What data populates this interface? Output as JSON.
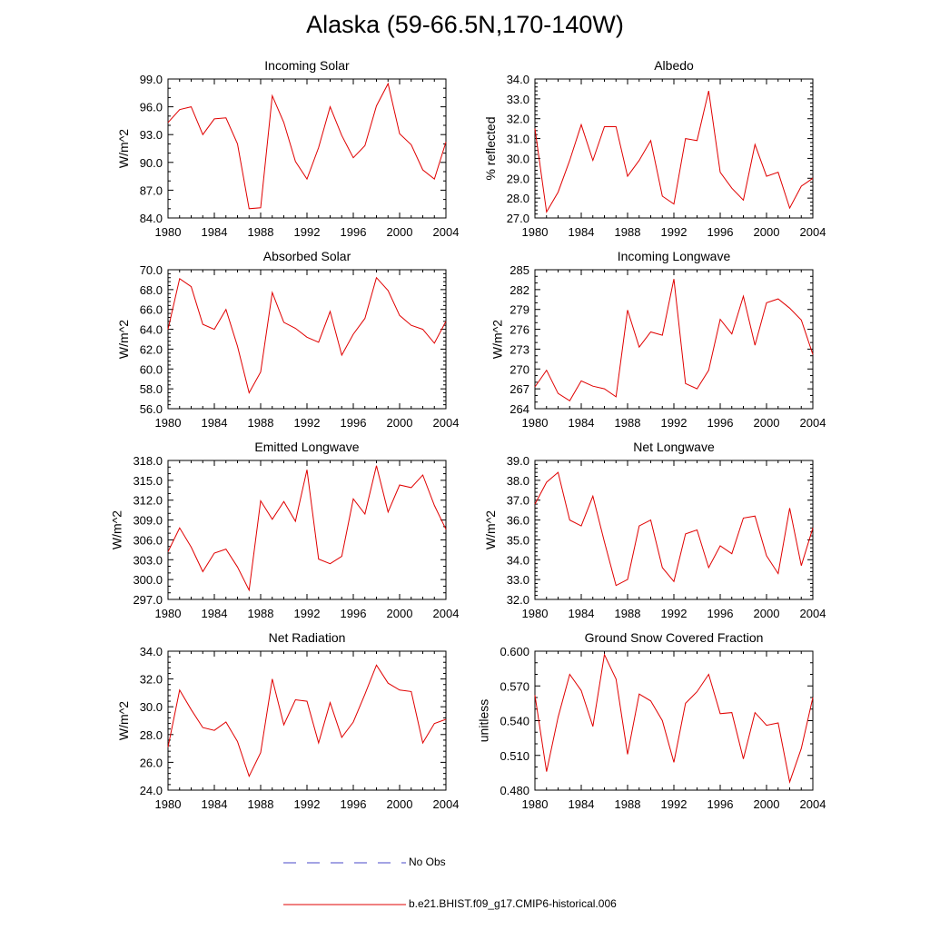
{
  "page": {
    "title": "Alaska (59-66.5N,170-140W)"
  },
  "legend": {
    "items": [
      {
        "label": "No Obs",
        "color": "#4a4ac8",
        "style": "dashed"
      },
      {
        "label": "b.e21.BHIST.f09_g17.CMIP6-historical.006",
        "color": "#e00000",
        "style": "solid"
      }
    ]
  },
  "chart_data": [
    {
      "type": "line",
      "title": "Incoming Solar",
      "xlabel": "",
      "ylabel": "W/m^2",
      "xlim": [
        1980,
        2004
      ],
      "ylim": [
        84.0,
        99.0
      ],
      "xticks": [
        "1980",
        "1984",
        "1988",
        "1992",
        "1996",
        "2000",
        "2004"
      ],
      "yticks": [
        "84.0",
        "87.0",
        "90.0",
        "93.0",
        "96.0",
        "99.0"
      ],
      "grid": false,
      "series": [
        {
          "color": "#e00000",
          "x": [
            1980,
            1981,
            1982,
            1983,
            1984,
            1985,
            1986,
            1987,
            1988,
            1989,
            1990,
            1991,
            1992,
            1993,
            1994,
            1995,
            1996,
            1997,
            1998,
            1999,
            2000,
            2001,
            2002,
            2003,
            2004
          ],
          "values": [
            94.3,
            95.7,
            96.0,
            93.0,
            94.7,
            94.8,
            92.0,
            85.0,
            85.1,
            97.2,
            94.3,
            90.1,
            88.2,
            91.6,
            96.0,
            92.9,
            90.5,
            91.8,
            96.1,
            98.5,
            93.1,
            91.9,
            89.2,
            88.2,
            92.2
          ]
        }
      ]
    },
    {
      "type": "line",
      "title": "Albedo",
      "xlabel": "",
      "ylabel": "% reflected",
      "xlim": [
        1980,
        2004
      ],
      "ylim": [
        27.0,
        34.0
      ],
      "xticks": [
        "1980",
        "1984",
        "1988",
        "1992",
        "1996",
        "2000",
        "2004"
      ],
      "yticks": [
        "27.0",
        "28.0",
        "29.0",
        "30.0",
        "31.0",
        "32.0",
        "33.0",
        "34.0"
      ],
      "grid": false,
      "series": [
        {
          "color": "#e00000",
          "x": [
            1980,
            1981,
            1982,
            1983,
            1984,
            1985,
            1986,
            1987,
            1988,
            1989,
            1990,
            1991,
            1992,
            1993,
            1994,
            1995,
            1996,
            1997,
            1998,
            1999,
            2000,
            2001,
            2002,
            2003,
            2004
          ],
          "values": [
            31.5,
            27.3,
            28.3,
            29.9,
            31.7,
            29.9,
            31.6,
            31.6,
            29.1,
            29.9,
            30.9,
            28.1,
            27.7,
            31.0,
            30.9,
            33.4,
            29.3,
            28.5,
            27.9,
            30.7,
            29.1,
            29.3,
            27.5,
            28.6,
            29.0
          ]
        }
      ]
    },
    {
      "type": "line",
      "title": "Absorbed Solar",
      "xlabel": "",
      "ylabel": "W/m^2",
      "xlim": [
        1980,
        2004
      ],
      "ylim": [
        56.0,
        70.0
      ],
      "xticks": [
        "1980",
        "1984",
        "1988",
        "1992",
        "1996",
        "2000",
        "2004"
      ],
      "yticks": [
        "56.0",
        "58.0",
        "60.0",
        "62.0",
        "64.0",
        "66.0",
        "68.0",
        "70.0"
      ],
      "grid": false,
      "series": [
        {
          "color": "#e00000",
          "x": [
            1980,
            1981,
            1982,
            1983,
            1984,
            1985,
            1986,
            1987,
            1988,
            1989,
            1990,
            1991,
            1992,
            1993,
            1994,
            1995,
            1996,
            1997,
            1998,
            1999,
            2000,
            2001,
            2002,
            2003,
            2004
          ],
          "values": [
            64.0,
            69.1,
            68.3,
            64.5,
            64.0,
            66.0,
            62.3,
            57.6,
            59.7,
            67.7,
            64.7,
            64.1,
            63.2,
            62.7,
            65.8,
            61.4,
            63.5,
            65.1,
            69.2,
            67.9,
            65.4,
            64.4,
            64.0,
            62.6,
            64.8
          ]
        }
      ]
    },
    {
      "type": "line",
      "title": "Incoming Longwave",
      "xlabel": "",
      "ylabel": "W/m^2",
      "xlim": [
        1980,
        2004
      ],
      "ylim": [
        264,
        285
      ],
      "xticks": [
        "1980",
        "1984",
        "1988",
        "1992",
        "1996",
        "2000",
        "2004"
      ],
      "yticks": [
        "264",
        "267",
        "270",
        "273",
        "276",
        "279",
        "282",
        "285"
      ],
      "grid": false,
      "series": [
        {
          "color": "#e00000",
          "x": [
            1980,
            1981,
            1982,
            1983,
            1984,
            1985,
            1986,
            1987,
            1988,
            1989,
            1990,
            1991,
            1992,
            1993,
            1994,
            1995,
            1996,
            1997,
            1998,
            1999,
            2000,
            2001,
            2002,
            2003,
            2004
          ],
          "values": [
            267.3,
            269.8,
            266.3,
            265.2,
            268.2,
            267.4,
            267.0,
            265.8,
            278.9,
            273.3,
            275.6,
            275.1,
            283.6,
            267.8,
            267.0,
            269.8,
            277.5,
            275.3,
            281.0,
            273.6,
            280.0,
            280.6,
            279.2,
            277.4,
            272.2
          ]
        }
      ]
    },
    {
      "type": "line",
      "title": "Emitted Longwave",
      "xlabel": "",
      "ylabel": "W/m^2",
      "xlim": [
        1980,
        2004
      ],
      "ylim": [
        297.0,
        318.0
      ],
      "xticks": [
        "1980",
        "1984",
        "1988",
        "1992",
        "1996",
        "2000",
        "2004"
      ],
      "yticks": [
        "297.0",
        "300.0",
        "303.0",
        "306.0",
        "309.0",
        "312.0",
        "315.0",
        "318.0"
      ],
      "grid": false,
      "series": [
        {
          "color": "#e00000",
          "x": [
            1980,
            1981,
            1982,
            1983,
            1984,
            1985,
            1986,
            1987,
            1988,
            1989,
            1990,
            1991,
            1992,
            1993,
            1994,
            1995,
            1996,
            1997,
            1998,
            1999,
            2000,
            2001,
            2002,
            2003,
            2004
          ],
          "values": [
            304.2,
            307.8,
            304.9,
            301.2,
            304.0,
            304.6,
            301.9,
            298.4,
            311.9,
            309.1,
            311.8,
            308.8,
            316.6,
            303.1,
            302.4,
            303.5,
            312.2,
            309.9,
            317.2,
            310.2,
            314.3,
            313.9,
            315.8,
            311.2,
            307.6
          ]
        }
      ]
    },
    {
      "type": "line",
      "title": "Net Longwave",
      "xlabel": "",
      "ylabel": "W/m^2",
      "xlim": [
        1980,
        2004
      ],
      "ylim": [
        32.0,
        39.0
      ],
      "xticks": [
        "1980",
        "1984",
        "1988",
        "1992",
        "1996",
        "2000",
        "2004"
      ],
      "yticks": [
        "32.0",
        "33.0",
        "34.0",
        "35.0",
        "36.0",
        "37.0",
        "38.0",
        "39.0"
      ],
      "grid": false,
      "series": [
        {
          "color": "#e00000",
          "x": [
            1980,
            1981,
            1982,
            1983,
            1984,
            1985,
            1986,
            1987,
            1988,
            1989,
            1990,
            1991,
            1992,
            1993,
            1994,
            1995,
            1996,
            1997,
            1998,
            1999,
            2000,
            2001,
            2002,
            2003,
            2004
          ],
          "values": [
            36.8,
            37.9,
            38.4,
            36.0,
            35.7,
            37.2,
            34.9,
            32.7,
            33.0,
            35.7,
            36.0,
            33.6,
            32.9,
            35.3,
            35.5,
            33.6,
            34.7,
            34.3,
            36.1,
            36.2,
            34.2,
            33.3,
            36.6,
            33.7,
            35.6
          ]
        }
      ]
    },
    {
      "type": "line",
      "title": "Net Radiation",
      "xlabel": "",
      "ylabel": "W/m^2",
      "xlim": [
        1980,
        2004
      ],
      "ylim": [
        24.0,
        34.0
      ],
      "xticks": [
        "1980",
        "1984",
        "1988",
        "1992",
        "1996",
        "2000",
        "2004"
      ],
      "yticks": [
        "24.0",
        "26.0",
        "28.0",
        "30.0",
        "32.0",
        "34.0"
      ],
      "grid": false,
      "series": [
        {
          "color": "#e00000",
          "x": [
            1980,
            1981,
            1982,
            1983,
            1984,
            1985,
            1986,
            1987,
            1988,
            1989,
            1990,
            1991,
            1992,
            1993,
            1994,
            1995,
            1996,
            1997,
            1998,
            1999,
            2000,
            2001,
            2002,
            2003,
            2004
          ],
          "values": [
            27.1,
            31.2,
            29.8,
            28.5,
            28.3,
            28.9,
            27.5,
            25.0,
            26.7,
            32.0,
            28.7,
            30.5,
            30.4,
            27.4,
            30.3,
            27.8,
            28.9,
            30.9,
            33.0,
            31.7,
            31.2,
            31.1,
            27.4,
            28.8,
            29.1
          ]
        }
      ]
    },
    {
      "type": "line",
      "title": "Ground Snow Covered Fraction",
      "xlabel": "",
      "ylabel": "unitless",
      "xlim": [
        1980,
        2004
      ],
      "ylim": [
        0.48,
        0.6
      ],
      "xticks": [
        "1980",
        "1984",
        "1988",
        "1992",
        "1996",
        "2000",
        "2004"
      ],
      "yticks": [
        "0.480",
        "0.510",
        "0.540",
        "0.570",
        "0.600"
      ],
      "grid": false,
      "series": [
        {
          "color": "#e00000",
          "x": [
            1980,
            1981,
            1982,
            1983,
            1984,
            1985,
            1986,
            1987,
            1988,
            1989,
            1990,
            1991,
            1992,
            1993,
            1994,
            1995,
            1996,
            1997,
            1998,
            1999,
            2000,
            2001,
            2002,
            2003,
            2004
          ],
          "values": [
            0.562,
            0.496,
            0.543,
            0.58,
            0.566,
            0.535,
            0.597,
            0.576,
            0.511,
            0.563,
            0.557,
            0.54,
            0.504,
            0.555,
            0.565,
            0.58,
            0.546,
            0.547,
            0.507,
            0.547,
            0.536,
            0.538,
            0.487,
            0.516,
            0.56
          ]
        }
      ]
    }
  ]
}
